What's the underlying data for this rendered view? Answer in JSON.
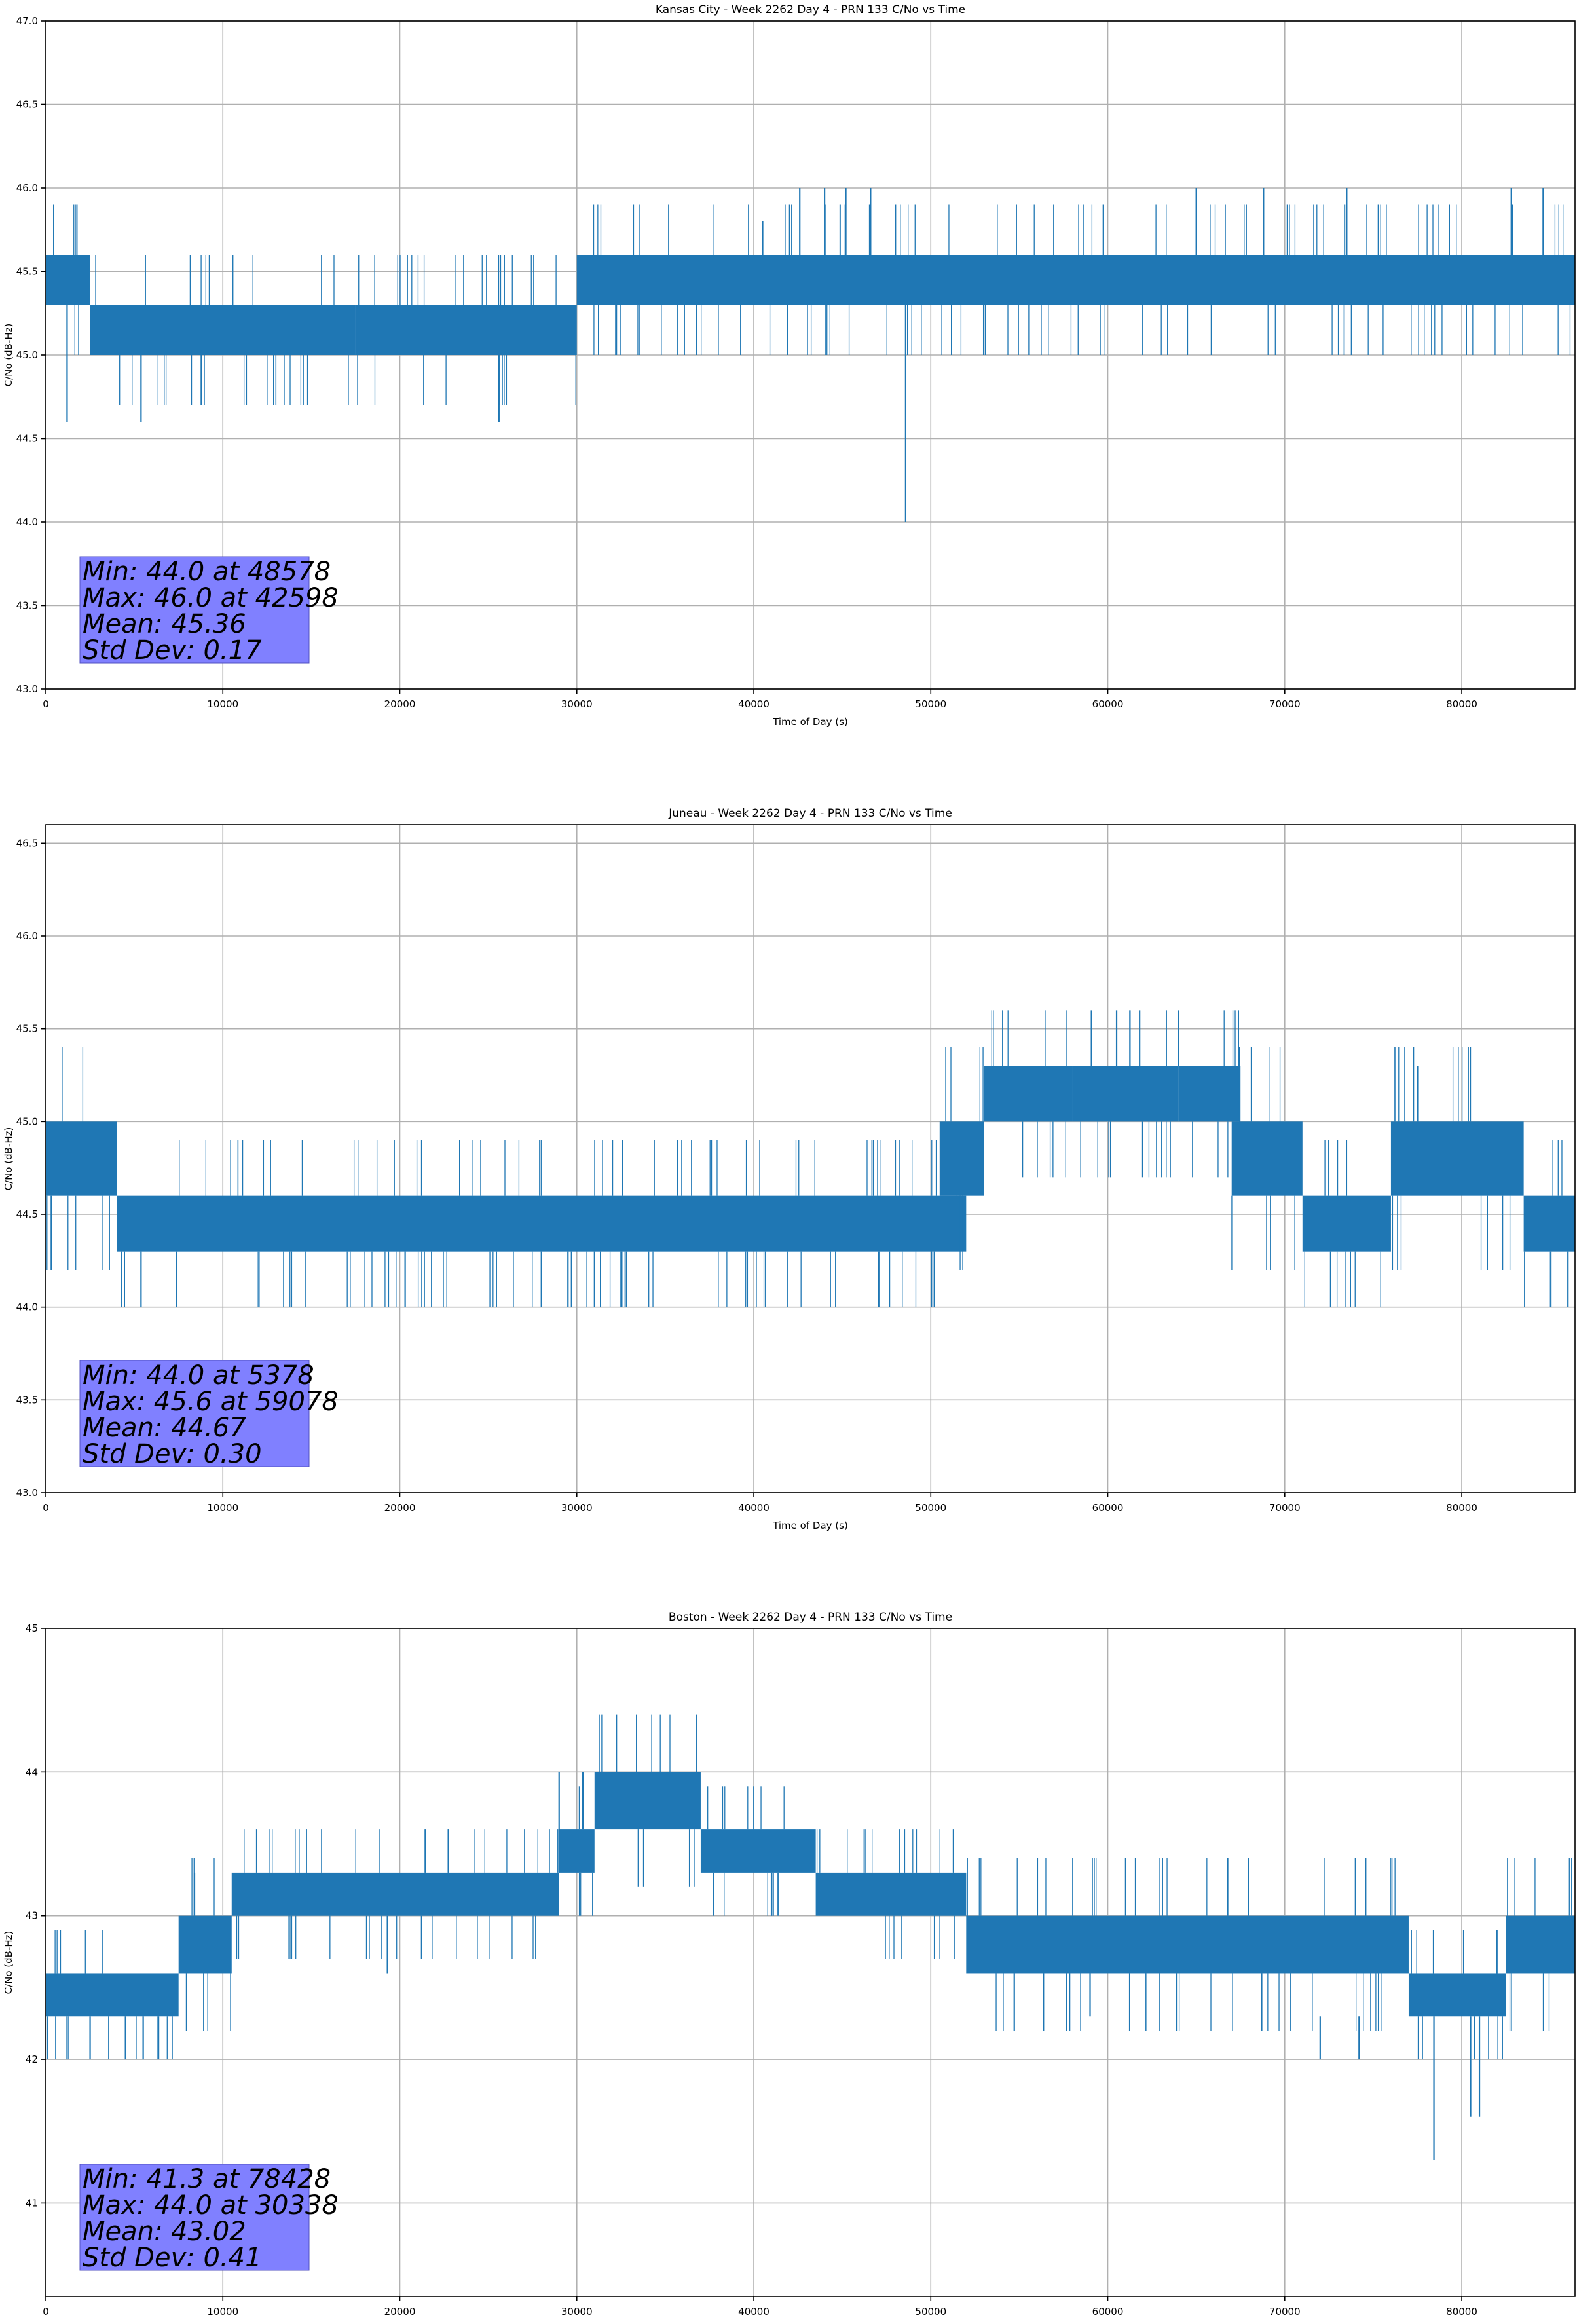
{
  "chart_data": [
    {
      "type": "line",
      "title": "Kansas City - Week 2262 Day 4 - PRN 133 C/No vs Time",
      "xlabel": "Time of Day (s)",
      "ylabel": "C/No (dB-Hz)",
      "xlim": [
        0,
        86400
      ],
      "ylim": [
        43.0,
        47.0
      ],
      "xticks": [
        0,
        10000,
        20000,
        30000,
        40000,
        50000,
        60000,
        70000,
        80000
      ],
      "yticks": [
        43.0,
        43.5,
        44.0,
        44.5,
        45.0,
        45.5,
        46.0,
        46.5,
        47.0
      ],
      "ytick_labels": [
        "43.0",
        "43.5",
        "44.0",
        "44.5",
        "45.0",
        "45.5",
        "46.0",
        "46.5",
        "47.0"
      ],
      "grid": true,
      "series_color": "#1f77b4",
      "bands": [
        {
          "x": [
            0,
            2500
          ],
          "y": [
            45.3,
            45.6
          ]
        },
        {
          "x": [
            2500,
            17500
          ],
          "y": [
            45.0,
            45.3
          ]
        },
        {
          "x": [
            17500,
            30000
          ],
          "y": [
            45.0,
            45.3
          ]
        },
        {
          "x": [
            30000,
            40000
          ],
          "y": [
            45.3,
            45.6
          ]
        },
        {
          "x": [
            40000,
            47000
          ],
          "y": [
            45.3,
            45.6
          ]
        },
        {
          "x": [
            47000,
            86400
          ],
          "y": [
            45.3,
            45.6
          ]
        }
      ],
      "spikes": [
        {
          "x": 1200,
          "y": [
            44.6,
            45.3
          ]
        },
        {
          "x": 5378,
          "y": [
            44.6,
            45.0
          ]
        },
        {
          "x": 25600,
          "y": [
            44.6,
            45.0
          ]
        },
        {
          "x": 48578,
          "y": [
            44.0,
            45.3
          ]
        },
        {
          "x": 40500,
          "y": [
            45.6,
            45.8
          ]
        },
        {
          "x": 42598,
          "y": [
            45.6,
            46.0
          ]
        },
        {
          "x": 44000,
          "y": [
            45.6,
            46.0
          ]
        },
        {
          "x": 45200,
          "y": [
            45.6,
            46.0
          ]
        },
        {
          "x": 46600,
          "y": [
            45.6,
            46.0
          ]
        },
        {
          "x": 65000,
          "y": [
            45.6,
            46.0
          ]
        },
        {
          "x": 68800,
          "y": [
            45.6,
            46.0
          ]
        },
        {
          "x": 73500,
          "y": [
            45.6,
            46.0
          ]
        },
        {
          "x": 82800,
          "y": [
            45.6,
            46.0
          ]
        },
        {
          "x": 84600,
          "y": [
            45.6,
            46.0
          ]
        }
      ],
      "stats": {
        "min": "Min: 44.0 at 48578",
        "max": "Max: 46.0 at 42598",
        "mean": "Mean: 45.36",
        "std": "Std Dev: 0.17"
      },
      "stats_box_color": "#8080ff"
    },
    {
      "type": "line",
      "title": "Juneau - Week 2262 Day 4 - PRN 133 C/No vs Time",
      "xlabel": "Time of Day (s)",
      "ylabel": "C/No (dB-Hz)",
      "xlim": [
        0,
        86400
      ],
      "ylim": [
        43.0,
        46.6
      ],
      "xticks": [
        0,
        10000,
        20000,
        30000,
        40000,
        50000,
        60000,
        70000,
        80000
      ],
      "yticks": [
        43.0,
        43.5,
        44.0,
        44.5,
        45.0,
        45.5,
        46.0,
        46.5
      ],
      "ytick_labels": [
        "43.0",
        "43.5",
        "44.0",
        "44.5",
        "45.0",
        "45.5",
        "46.0",
        "46.5"
      ],
      "grid": true,
      "series_color": "#1f77b4",
      "bands": [
        {
          "x": [
            0,
            4000
          ],
          "y": [
            44.6,
            45.0
          ]
        },
        {
          "x": [
            4000,
            52000
          ],
          "y": [
            44.3,
            44.6
          ]
        },
        {
          "x": [
            50500,
            53000
          ],
          "y": [
            44.6,
            45.0
          ]
        },
        {
          "x": [
            53000,
            58000
          ],
          "y": [
            45.0,
            45.3
          ]
        },
        {
          "x": [
            58000,
            64000
          ],
          "y": [
            45.0,
            45.3
          ]
        },
        {
          "x": [
            64000,
            67500
          ],
          "y": [
            45.0,
            45.3
          ]
        },
        {
          "x": [
            67000,
            71000
          ],
          "y": [
            44.6,
            45.0
          ]
        },
        {
          "x": [
            71000,
            76000
          ],
          "y": [
            44.3,
            44.6
          ]
        },
        {
          "x": [
            76000,
            83500
          ],
          "y": [
            44.6,
            45.0
          ]
        },
        {
          "x": [
            83500,
            86400
          ],
          "y": [
            44.3,
            44.6
          ]
        }
      ],
      "spikes": [
        {
          "x": 5378,
          "y": [
            44.0,
            44.3
          ]
        },
        {
          "x": 20300,
          "y": [
            44.0,
            44.3
          ]
        },
        {
          "x": 28000,
          "y": [
            44.0,
            44.3
          ]
        },
        {
          "x": 29500,
          "y": [
            44.0,
            44.3
          ]
        },
        {
          "x": 31000,
          "y": [
            44.0,
            44.3
          ]
        },
        {
          "x": 32500,
          "y": [
            44.0,
            44.3
          ]
        },
        {
          "x": 59078,
          "y": [
            45.3,
            45.6
          ]
        },
        {
          "x": 60500,
          "y": [
            45.3,
            45.6
          ]
        },
        {
          "x": 61800,
          "y": [
            45.3,
            45.6
          ]
        },
        {
          "x": 64000,
          "y": [
            45.3,
            45.6
          ]
        },
        {
          "x": 77500,
          "y": [
            45.0,
            45.3
          ]
        },
        {
          "x": 86000,
          "y": [
            44.0,
            44.3
          ]
        }
      ],
      "stats": {
        "min": "Min: 44.0 at 5378",
        "max": "Max: 45.6 at 59078",
        "mean": "Mean: 44.67",
        "std": "Std Dev: 0.30"
      },
      "stats_box_color": "#8080ff"
    },
    {
      "type": "line",
      "title": "Boston - Week 2262 Day 4 - PRN 133 C/No vs Time",
      "xlabel": "Time of Day (s)",
      "ylabel": "C/No (dB-Hz)",
      "xlim": [
        0,
        86400
      ],
      "ylim": [
        40.35,
        45.0
      ],
      "xticks": [
        0,
        10000,
        20000,
        30000,
        40000,
        50000,
        60000,
        70000,
        80000
      ],
      "yticks": [
        41,
        42,
        43,
        44,
        45
      ],
      "ytick_labels": [
        "41",
        "42",
        "43",
        "44",
        "45"
      ],
      "grid": true,
      "series_color": "#1f77b4",
      "bands": [
        {
          "x": [
            0,
            7500
          ],
          "y": [
            42.3,
            42.6
          ]
        },
        {
          "x": [
            7500,
            10500
          ],
          "y": [
            42.6,
            43.0
          ]
        },
        {
          "x": [
            10500,
            29000
          ],
          "y": [
            43.0,
            43.3
          ]
        },
        {
          "x": [
            29000,
            31000
          ],
          "y": [
            43.3,
            43.6
          ]
        },
        {
          "x": [
            31000,
            37000
          ],
          "y": [
            43.6,
            44.0
          ]
        },
        {
          "x": [
            37000,
            43500
          ],
          "y": [
            43.3,
            43.6
          ]
        },
        {
          "x": [
            43500,
            52000
          ],
          "y": [
            43.0,
            43.3
          ]
        },
        {
          "x": [
            52000,
            77000
          ],
          "y": [
            42.6,
            43.0
          ]
        },
        {
          "x": [
            77000,
            82500
          ],
          "y": [
            42.3,
            42.6
          ]
        },
        {
          "x": [
            82500,
            86400
          ],
          "y": [
            42.6,
            43.0
          ]
        }
      ],
      "spikes": [
        {
          "x": 1200,
          "y": [
            42.0,
            42.3
          ]
        },
        {
          "x": 2500,
          "y": [
            42.0,
            42.3
          ]
        },
        {
          "x": 4500,
          "y": [
            42.0,
            42.3
          ]
        },
        {
          "x": 5500,
          "y": [
            42.0,
            42.3
          ]
        },
        {
          "x": 8400,
          "y": [
            43.0,
            43.3
          ]
        },
        {
          "x": 19300,
          "y": [
            42.6,
            43.0
          ]
        },
        {
          "x": 29000,
          "y": [
            43.3,
            44.0
          ]
        },
        {
          "x": 30338,
          "y": [
            43.6,
            44.0
          ]
        },
        {
          "x": 41000,
          "y": [
            43.0,
            43.3
          ]
        },
        {
          "x": 59000,
          "y": [
            42.3,
            42.6
          ]
        },
        {
          "x": 72000,
          "y": [
            42.0,
            42.3
          ]
        },
        {
          "x": 74200,
          "y": [
            42.0,
            42.3
          ]
        },
        {
          "x": 78428,
          "y": [
            41.3,
            42.3
          ]
        },
        {
          "x": 80500,
          "y": [
            41.6,
            42.3
          ]
        },
        {
          "x": 81000,
          "y": [
            41.6,
            42.3
          ]
        }
      ],
      "stats": {
        "min": "Min: 41.3 at 78428",
        "max": "Max: 44.0 at 30338",
        "mean": "Mean: 43.02",
        "std": "Std Dev: 0.41"
      },
      "stats_box_color": "#8080ff"
    }
  ]
}
